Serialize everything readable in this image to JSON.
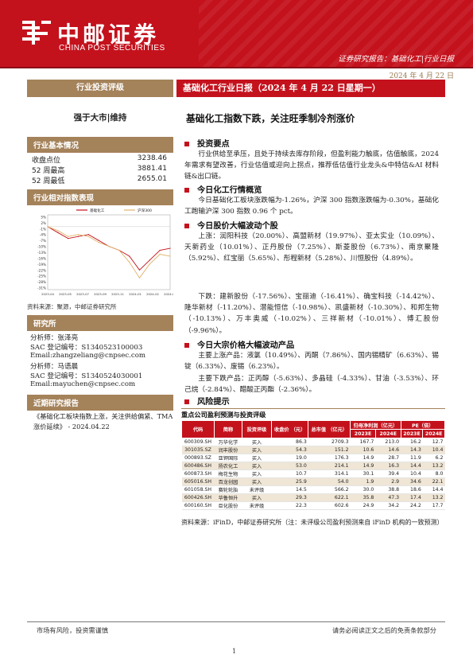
{
  "header": {
    "logo_cn": "中邮证券",
    "logo_en": "CHINA POST SECURITIES",
    "report_type": "证券研究报告：基础化工|行业日报",
    "date": "2024 年 4 月 22 日",
    "brand_color": "#c4121d",
    "accent_color": "#a4825a"
  },
  "left": {
    "rating_label": "行业投资评级",
    "rating": "强于大市|维持",
    "basic_info_title": "行业基本情况",
    "basic_info": [
      {
        "label": "收盘点位",
        "value": "3238.46"
      },
      {
        "label": "52 周最高",
        "value": "3881.41"
      },
      {
        "label": "52 周最低",
        "value": "2655.01"
      }
    ],
    "chart_title": "行业相对指数表现",
    "chart_source": "资料来源：聚源，中邮证券研究所",
    "research_title": "研究所",
    "analysts": [
      "分析师：张泽亮",
      "SAC 登记编号：S1340523100003",
      "Email:zhangzeliang@cnpsec.com",
      "分析师：马语晨",
      "SAC 登记编号：S1340524030001",
      "Email:mayuchen@cnpsec.com"
    ],
    "recent_title": "近期研究报告",
    "recent_report": "《基础化工板块指数上涨，关注供给偏紧、TMA 涨价延续》 - 2024.04.22"
  },
  "chart_data": {
    "type": "line",
    "title": "",
    "xlabel": "",
    "ylabel": "",
    "x": [
      "2023-04",
      "2023-05",
      "2023-06",
      "2023-07",
      "2023-08",
      "2023-09",
      "2023-10",
      "2023-11",
      "2023-12",
      "2024-01",
      "2024-02",
      "2024-03",
      "2024-04"
    ],
    "tick_labels": [
      "2023-04",
      "2023-05",
      "2023-07",
      "2023-09",
      "2023-11",
      "2024-01",
      "2024-02",
      "2024-04"
    ],
    "ylim": [
      -32,
      6
    ],
    "y_ticks": [
      "5%",
      "2%",
      "-1%",
      "-4%",
      "-7%",
      "-10%",
      "-13%",
      "-16%",
      "-19%",
      "-22%",
      "-25%",
      "-28%",
      "-31%"
    ],
    "legend_position": "top",
    "series": [
      {
        "name": "基础化工",
        "color": "#c4121d",
        "values": [
          0,
          -3,
          -6,
          -5,
          -4,
          -7,
          -10,
          -12,
          -15,
          -22,
          -17,
          -12,
          -11
        ]
      },
      {
        "name": "沪深300",
        "color": "#e0b36a",
        "values": [
          0,
          -2,
          -5,
          -4,
          -5,
          -8,
          -10,
          -12,
          -18,
          -26,
          -19,
          -14,
          -15
        ]
      }
    ]
  },
  "right": {
    "title": "基础化工行业日报（2024 年 4 月 22 日星期一）",
    "subtitle": "基础化工指数下跌，关注旺季制冷剂涨价",
    "sections": [
      {
        "heading": "投资要点",
        "paragraphs": [
          "行业供给至承压，且处于持续去库存阶段，但盈利能力触底，估值触底，2024 年需求有望改善，行业估值或迎向上拐点，推荐低估值行业龙头&中特估&AI 材料链&出口链。"
        ]
      },
      {
        "heading": "今日化工行情概览",
        "paragraphs": [
          "今日基础化工板块涨跌幅为-1.26%，沪深 300 指数涨跌幅为-0.30%，基础化工跑输沪深 300 指数 0.96 个 pct。"
        ]
      },
      {
        "heading": "今日股价大幅波动个股",
        "paragraphs": [
          "上涨：润阳科技（20.00%）、高盟新材（19.97%）、亚太实业（10.09%）、天新药业（10.01%）、正丹股份（7.25%）、斯菱股份（6.73%）、南京聚隆（5.92%）、红宝丽（5.65%）、彤程新材（5.28%）、川恒股份（4.89%）。",
          "下跌：建新股份（-17.56%）、宝丽迪（-16.41%）、确宝科技（-14.42%）、隆华新材（-11.20%）、潜能恒信（-10.98%）、凯盛新材（-10.30%）、和邦生物（-10.13%）、万丰奥威（-10.02%）、三祥新材（-10.01%）、博汇股份（-9.96%）。"
        ]
      },
      {
        "heading": "今日大宗价格大幅波动产品",
        "paragraphs": [
          "主要上涨产品：液氯（10.49%）、丙酮（7.86%）、国内锡精矿（6.63%）、锡锭（6.33%）、废锡（6.23%）。",
          "主要下跌产品：正丙醇（-5.63%）、多晶硅（-4.33%）、甘油（-3.53%）、环己烷（-2.84%）、醋酸正丙酯（-2.36%）。"
        ]
      },
      {
        "heading": "风险提示",
        "paragraphs": [
          "供给格局恶化风险，出口不及预期风险，地产恢复不及预期风险。"
        ]
      }
    ],
    "table": {
      "title": "重点公司盈利预测与投资评级",
      "group_profit": "归母净利润（亿元）",
      "group_pe": "PE（倍）",
      "headers": [
        "代码",
        "简称",
        "投资评级",
        "收盘价\n（元）",
        "总市值\n（亿元）",
        "2023E",
        "2024E",
        "2023E",
        "2024E"
      ],
      "rows": [
        [
          "600309.SH",
          "万华化学",
          "买入",
          "86.3",
          "2709.3",
          "167.7",
          "213.0",
          "16.2",
          "12.7"
        ],
        [
          "301035.SZ",
          "润丰股份",
          "买入",
          "54.3",
          "151.2",
          "10.6",
          "14.6",
          "14.3",
          "10.4"
        ],
        [
          "000893.SZ",
          "亚钾国际",
          "买入",
          "19.0",
          "176.3",
          "14.9",
          "28.7",
          "11.9",
          "6.2"
        ],
        [
          "600486.SH",
          "扬农化工",
          "买入",
          "53.0",
          "214.1",
          "14.9",
          "16.3",
          "14.4",
          "13.2"
        ],
        [
          "600873.SH",
          "梅花生物",
          "买入",
          "10.7",
          "314.1",
          "30.1",
          "39.4",
          "10.4",
          "8.0"
        ],
        [
          "605016.SH",
          "百龙创园",
          "买入",
          "25.9",
          "54.0",
          "1.9",
          "2.9",
          "34.6",
          "22.1"
        ],
        [
          "601058.SH",
          "赛轮轮胎",
          "未评级",
          "14.5",
          "566.2",
          "30.0",
          "38.8",
          "18.6",
          "14.4"
        ],
        [
          "600426.SH",
          "华鲁恒升",
          "买入",
          "29.3",
          "622.1",
          "35.8",
          "47.3",
          "17.4",
          "13.2"
        ],
        [
          "600160.SH",
          "巨化股份",
          "未评级",
          "22.3",
          "602.6",
          "24.9",
          "34.2",
          "24.2",
          "17.7"
        ]
      ],
      "note": "资料来源：iFinD，中邮证券研究所（注：未评级公司盈利预测来自 iFinD 机构的一致预测）"
    }
  },
  "footer": {
    "left": "市场有风险，投资需谨慎",
    "right": "请务必阅读正文之后的免责条款部分",
    "page": "1"
  }
}
